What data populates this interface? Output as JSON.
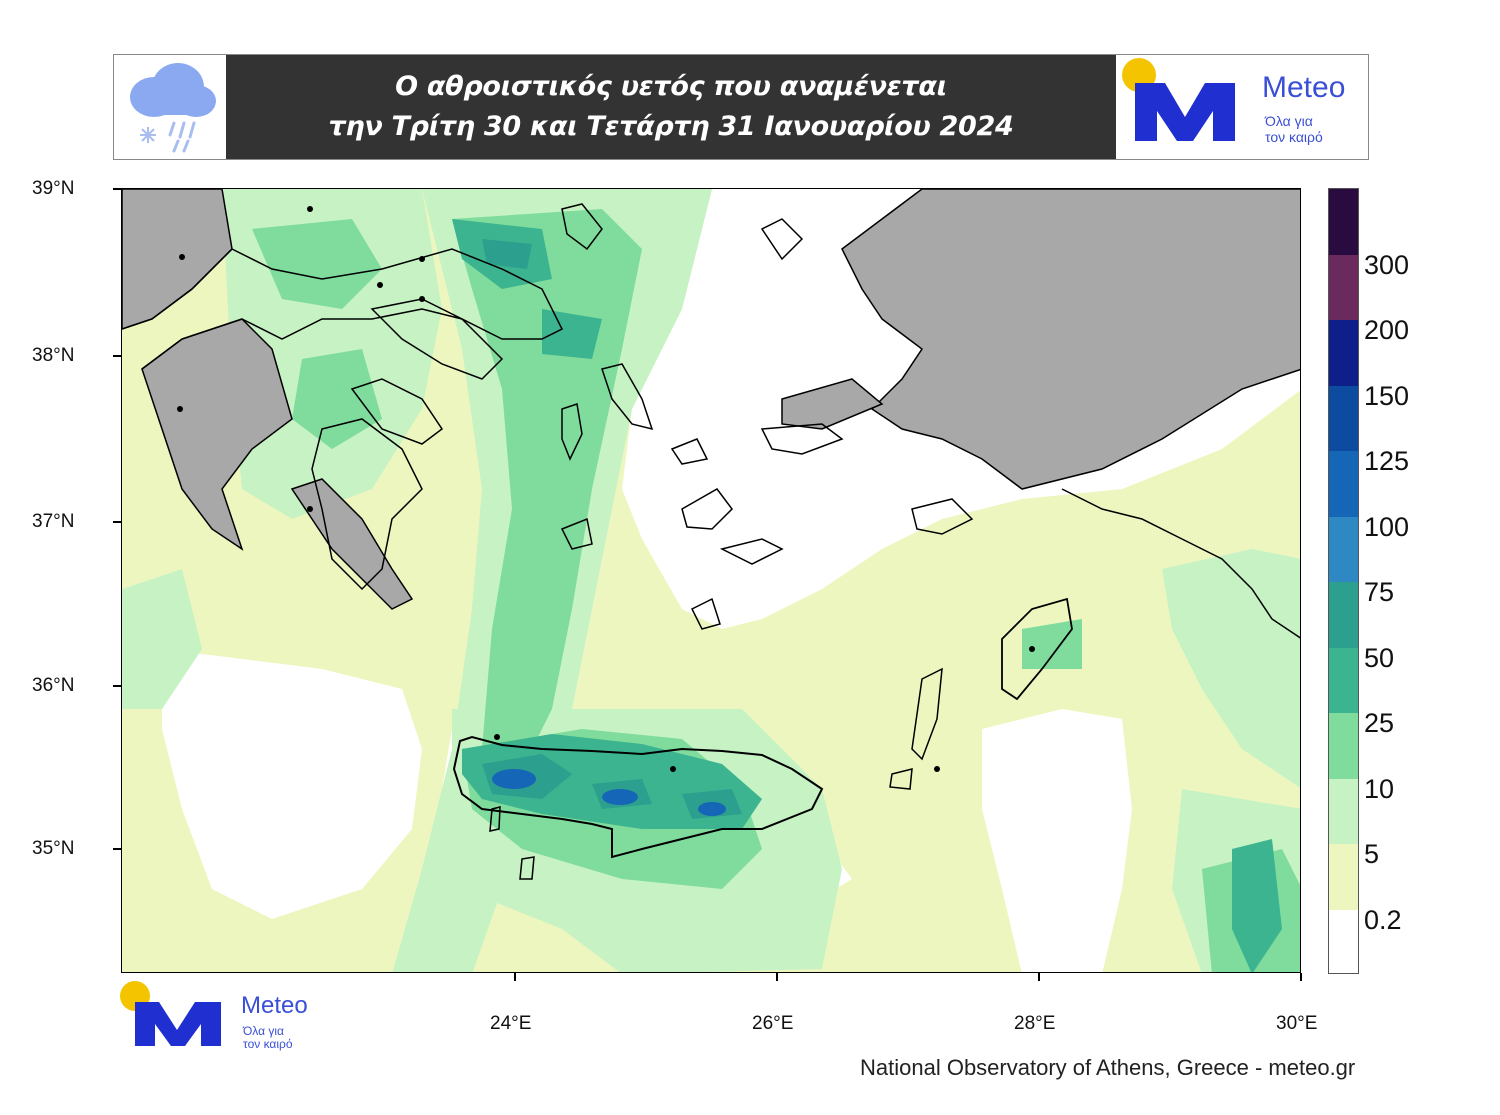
{
  "title": {
    "line1": "Ο αθροιστικός υετός που αναμένεται",
    "line2": "την Τρίτη 30 και Τετάρτη 31 Ιανουαρίου 2024"
  },
  "logo": {
    "name": "Meteo",
    "tagline_1": "Όλα για",
    "tagline_2": "τον καιρό"
  },
  "map": {
    "lat_labels": [
      "39°N",
      "38°N",
      "37°N",
      "36°N",
      "35°N"
    ],
    "lon_labels": [
      "24°E",
      "26°E",
      "28°E",
      "30°E"
    ]
  },
  "colorbar": {
    "labels": [
      "300",
      "200",
      "150",
      "125",
      "100",
      "75",
      "50",
      "25",
      "10",
      "5",
      "0.2"
    ],
    "colors": [
      "#2a0b3f",
      "#6b2a5e",
      "#0f1f8a",
      "#0c4ba0",
      "#1566b6",
      "#2d88c4",
      "#2c9f8f",
      "#3bb48f",
      "#7fdc9c",
      "#c6f2c4",
      "#eef6c0",
      "#ffffff"
    ]
  },
  "credit": "National Observatory of Athens, Greece - meteo.gr"
}
